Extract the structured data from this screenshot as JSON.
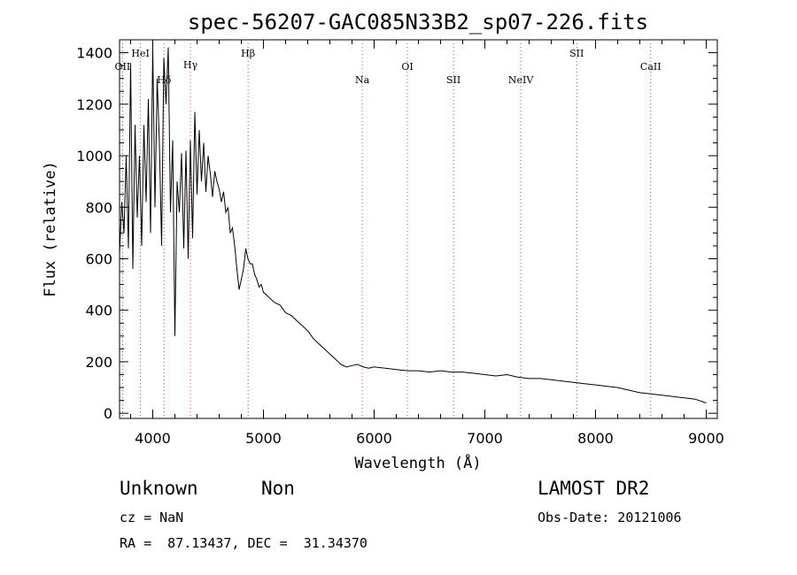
{
  "chart_data": {
    "type": "line",
    "title": "spec-56207-GAC085N33B2_sp07-226.fits",
    "xlabel": "Wavelength (Å)",
    "ylabel": "Flux (relative)",
    "xlim": [
      3700,
      9100
    ],
    "ylim": [
      -20,
      1450
    ],
    "xticks": [
      4000,
      5000,
      6000,
      7000,
      8000,
      9000
    ],
    "yticks": [
      0,
      200,
      400,
      600,
      800,
      1000,
      1200,
      1400
    ],
    "grid": false,
    "series": [
      {
        "x": [
          3700,
          3720,
          3740,
          3760,
          3780,
          3800,
          3820,
          3840,
          3860,
          3880,
          3900,
          3920,
          3940,
          3960,
          3980,
          4000,
          4020,
          4040,
          4060,
          4080,
          4100,
          4120,
          4140,
          4160,
          4180,
          4200,
          4220,
          4240,
          4260,
          4280,
          4300,
          4320,
          4340,
          4360,
          4380,
          4400,
          4420,
          4440,
          4460,
          4480,
          4500,
          4520,
          4540,
          4560,
          4580,
          4600,
          4620,
          4640,
          4660,
          4680,
          4700,
          4720,
          4740,
          4760,
          4780,
          4800,
          4820,
          4840,
          4860,
          4880,
          4900,
          4920,
          4940,
          4960,
          4980,
          5000,
          5050,
          5100,
          5150,
          5200,
          5250,
          5300,
          5350,
          5400,
          5450,
          5500,
          5550,
          5600,
          5650,
          5700,
          5750,
          5800,
          5850,
          5900,
          5950,
          6000,
          6100,
          6200,
          6300,
          6400,
          6500,
          6600,
          6700,
          6800,
          6900,
          7000,
          7100,
          7200,
          7300,
          7400,
          7500,
          7600,
          7700,
          7800,
          7900,
          8000,
          8100,
          8200,
          8300,
          8400,
          8500,
          8600,
          8700,
          8800,
          8900,
          9000
        ],
        "y": [
          620,
          820,
          700,
          1000,
          640,
          1360,
          560,
          1120,
          760,
          1000,
          650,
          1120,
          820,
          1220,
          700,
          1420,
          800,
          1300,
          1050,
          650,
          1380,
          1200,
          1420,
          780,
          1060,
          300,
          900,
          780,
          1010,
          640,
          1020,
          600,
          1060,
          680,
          1170,
          850,
          1100,
          900,
          1050,
          860,
          1000,
          930,
          840,
          940,
          900,
          870,
          820,
          860,
          780,
          800,
          700,
          720,
          650,
          560,
          480,
          520,
          560,
          640,
          600,
          580,
          580,
          540,
          520,
          490,
          500,
          470,
          450,
          430,
          420,
          390,
          380,
          360,
          340,
          320,
          290,
          270,
          250,
          230,
          210,
          190,
          180,
          185,
          190,
          180,
          175,
          180,
          175,
          170,
          165,
          165,
          160,
          165,
          160,
          160,
          155,
          150,
          145,
          150,
          140,
          135,
          135,
          130,
          125,
          120,
          115,
          110,
          105,
          100,
          90,
          80,
          75,
          70,
          65,
          60,
          55,
          40
        ]
      }
    ],
    "annotations": [
      {
        "label": "OII",
        "x": 3727
      },
      {
        "label": "HeI",
        "x": 3889
      },
      {
        "label": "Hδ",
        "x": 4102
      },
      {
        "label": "Hγ",
        "x": 4340
      },
      {
        "label": "Hβ",
        "x": 4861
      },
      {
        "label": "Na",
        "x": 5893
      },
      {
        "label": "OI",
        "x": 6300
      },
      {
        "label": "SII",
        "x": 6717
      },
      {
        "label": "NeIV",
        "x": 7325
      },
      {
        "label": "SII",
        "x": 7830
      },
      {
        "label": "CaII",
        "x": 8498
      }
    ]
  },
  "info": {
    "class": "Unknown",
    "subclass": "Non",
    "survey": "LAMOST DR2",
    "cz": "cz = NaN",
    "obs_date": "Obs-Date: 20121006",
    "coords": "RA =  87.13437, DEC =  31.34370"
  },
  "colors": {
    "spectrum": "#000000",
    "line_marker": "#e04040",
    "axes": "#000000"
  }
}
